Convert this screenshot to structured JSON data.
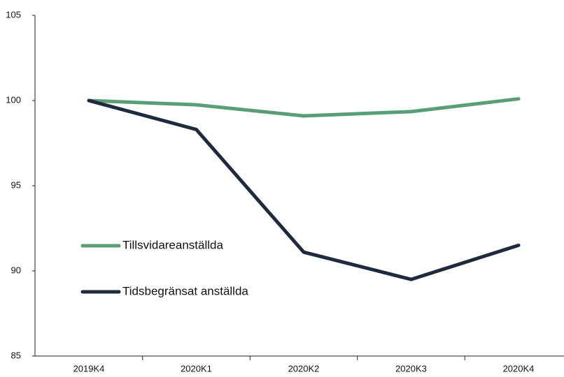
{
  "chart_data": {
    "type": "line",
    "categories": [
      "2019K4",
      "2020K1",
      "2020K2",
      "2020K3",
      "2020K4"
    ],
    "series": [
      {
        "name": "Tillsvidareanställda",
        "color": "#5a9e78",
        "values": [
          100,
          99.75,
          99.1,
          99.35,
          100.1
        ]
      },
      {
        "name": "Tidsbegränsat anställda",
        "color": "#1f2a3c",
        "values": [
          100,
          98.3,
          91.1,
          89.5,
          91.5
        ]
      }
    ],
    "ylim": [
      85,
      105
    ],
    "yticks": [
      85,
      90,
      95,
      100,
      105
    ],
    "grid": false,
    "legend": "left"
  }
}
